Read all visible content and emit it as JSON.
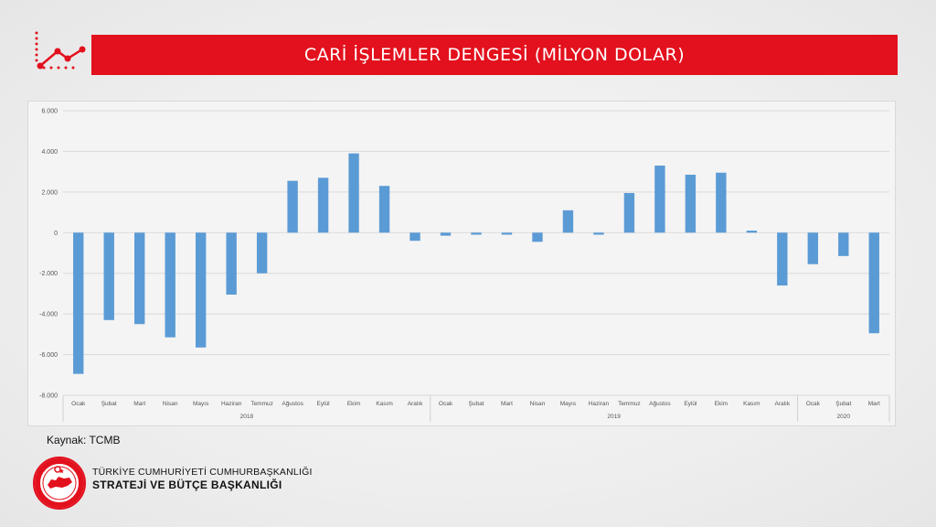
{
  "header": {
    "title": "CARİ İŞLEMLER DENGESİ (MİLYON DOLAR)",
    "accent_color": "#e3101d",
    "icon": "trend-line-icon"
  },
  "source_label": "Kaynak: TCMB",
  "organization": {
    "line1": "TÜRKİYE CUMHURİYETİ CUMHURBAŞKANLIĞI",
    "line2": "STRATEJİ VE BÜTÇE BAŞKANLIĞI",
    "seal_text": "T.C. CUMHURBAŞKANLIĞI STRATEJİ VE BÜTÇE BAŞKANLIĞI"
  },
  "chart_data": {
    "type": "bar",
    "categories": [
      "Ocak",
      "Şubat",
      "Mart",
      "Nisan",
      "Mayıs",
      "Haziran",
      "Temmuz",
      "Ağustos",
      "Eylül",
      "Ekim",
      "Kasım",
      "Aralık",
      "Ocak",
      "Şubat",
      "Mart",
      "Nisan",
      "Mayıs",
      "Haziran",
      "Temmuz",
      "Ağustos",
      "Eylül",
      "Ekim",
      "Kasım",
      "Aralık",
      "Ocak",
      "Şubat",
      "Mart"
    ],
    "groups": [
      {
        "label": "2018",
        "count": 12
      },
      {
        "label": "2019",
        "count": 12
      },
      {
        "label": "2020",
        "count": 3
      }
    ],
    "values": [
      -6950,
      -4300,
      -4500,
      -5150,
      -5650,
      -3050,
      -2000,
      2550,
      2700,
      3900,
      2300,
      -400,
      -150,
      -100,
      -100,
      -450,
      1100,
      -100,
      1950,
      3300,
      2850,
      2950,
      100,
      -2600,
      -1550,
      -1150,
      -4950
    ],
    "yticks": [
      "6.000",
      "4.000",
      "2.000",
      "0",
      "-2.000",
      "-4.000",
      "-6.000",
      "-8.000"
    ],
    "ylim": [
      -8000,
      6000
    ],
    "bar_color": "#5b9bd5",
    "grid": true
  }
}
